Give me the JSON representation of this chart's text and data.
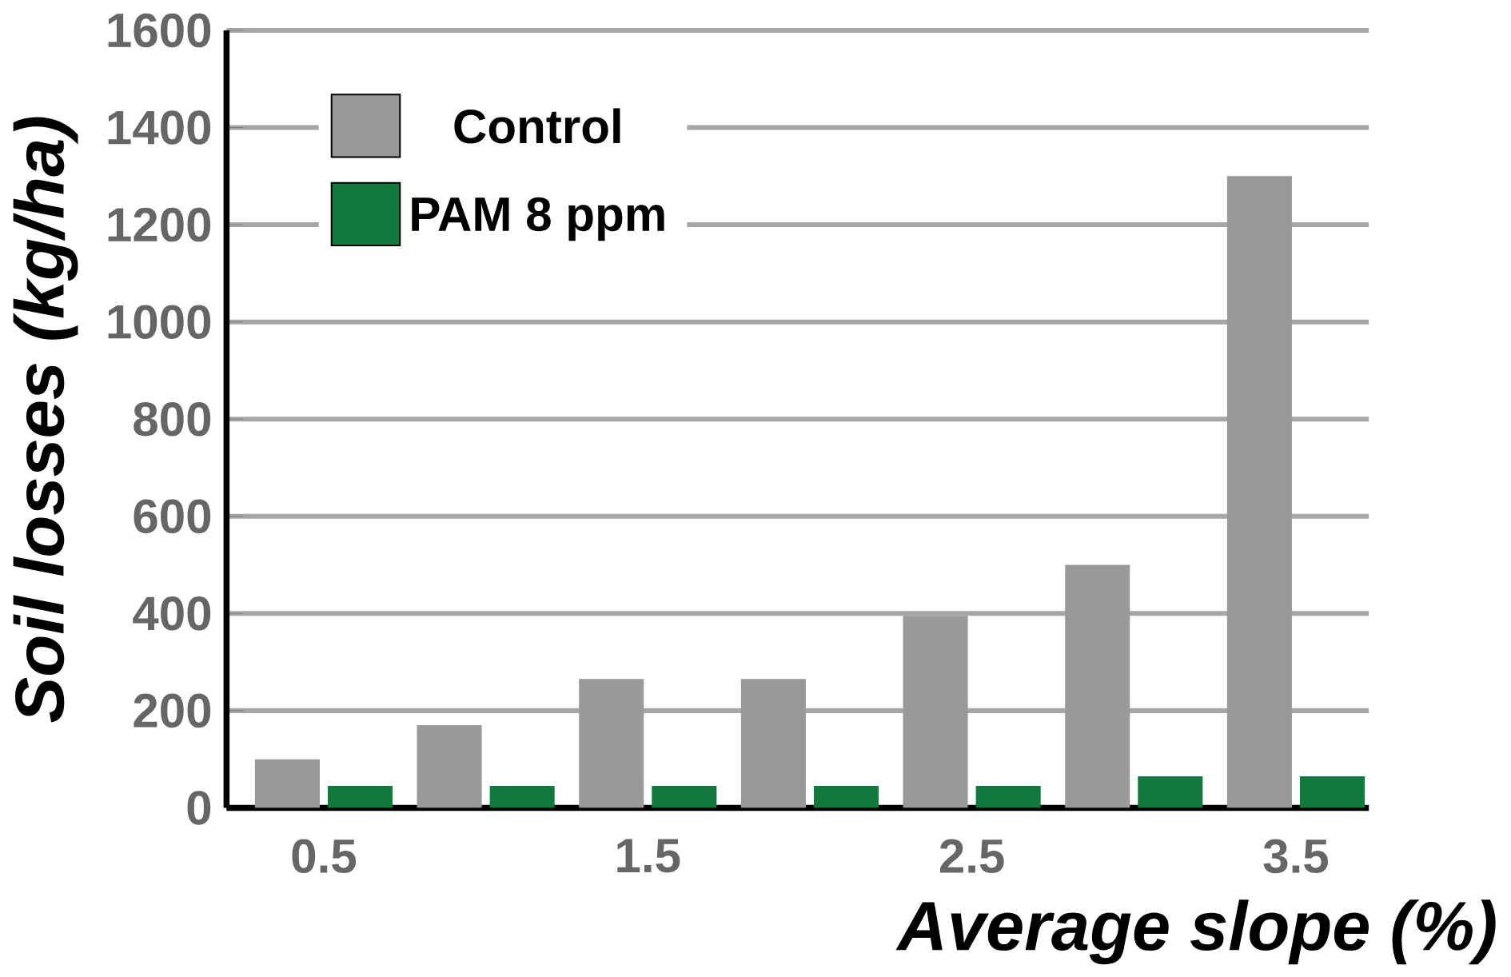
{
  "chart_data": {
    "type": "bar",
    "xlabel": "Average slope (%)",
    "ylabel": "Soil losses (kg/ha)",
    "categories": [
      "0.5",
      null,
      "1.5",
      null,
      "2.5",
      null,
      "3.5"
    ],
    "series": [
      {
        "name": "Control",
        "color": "#999999",
        "values": [
          100,
          170,
          265,
          265,
          395,
          500,
          1300
        ]
      },
      {
        "name": "PAM 8 ppm",
        "color": "#0f7a3c",
        "values": [
          45,
          45,
          45,
          45,
          45,
          65,
          65
        ]
      }
    ],
    "ylim": [
      0,
      1600
    ],
    "yticks": [
      0,
      200,
      400,
      600,
      800,
      1000,
      1200,
      1400,
      1600
    ],
    "grid": "y",
    "legend": "top left"
  }
}
